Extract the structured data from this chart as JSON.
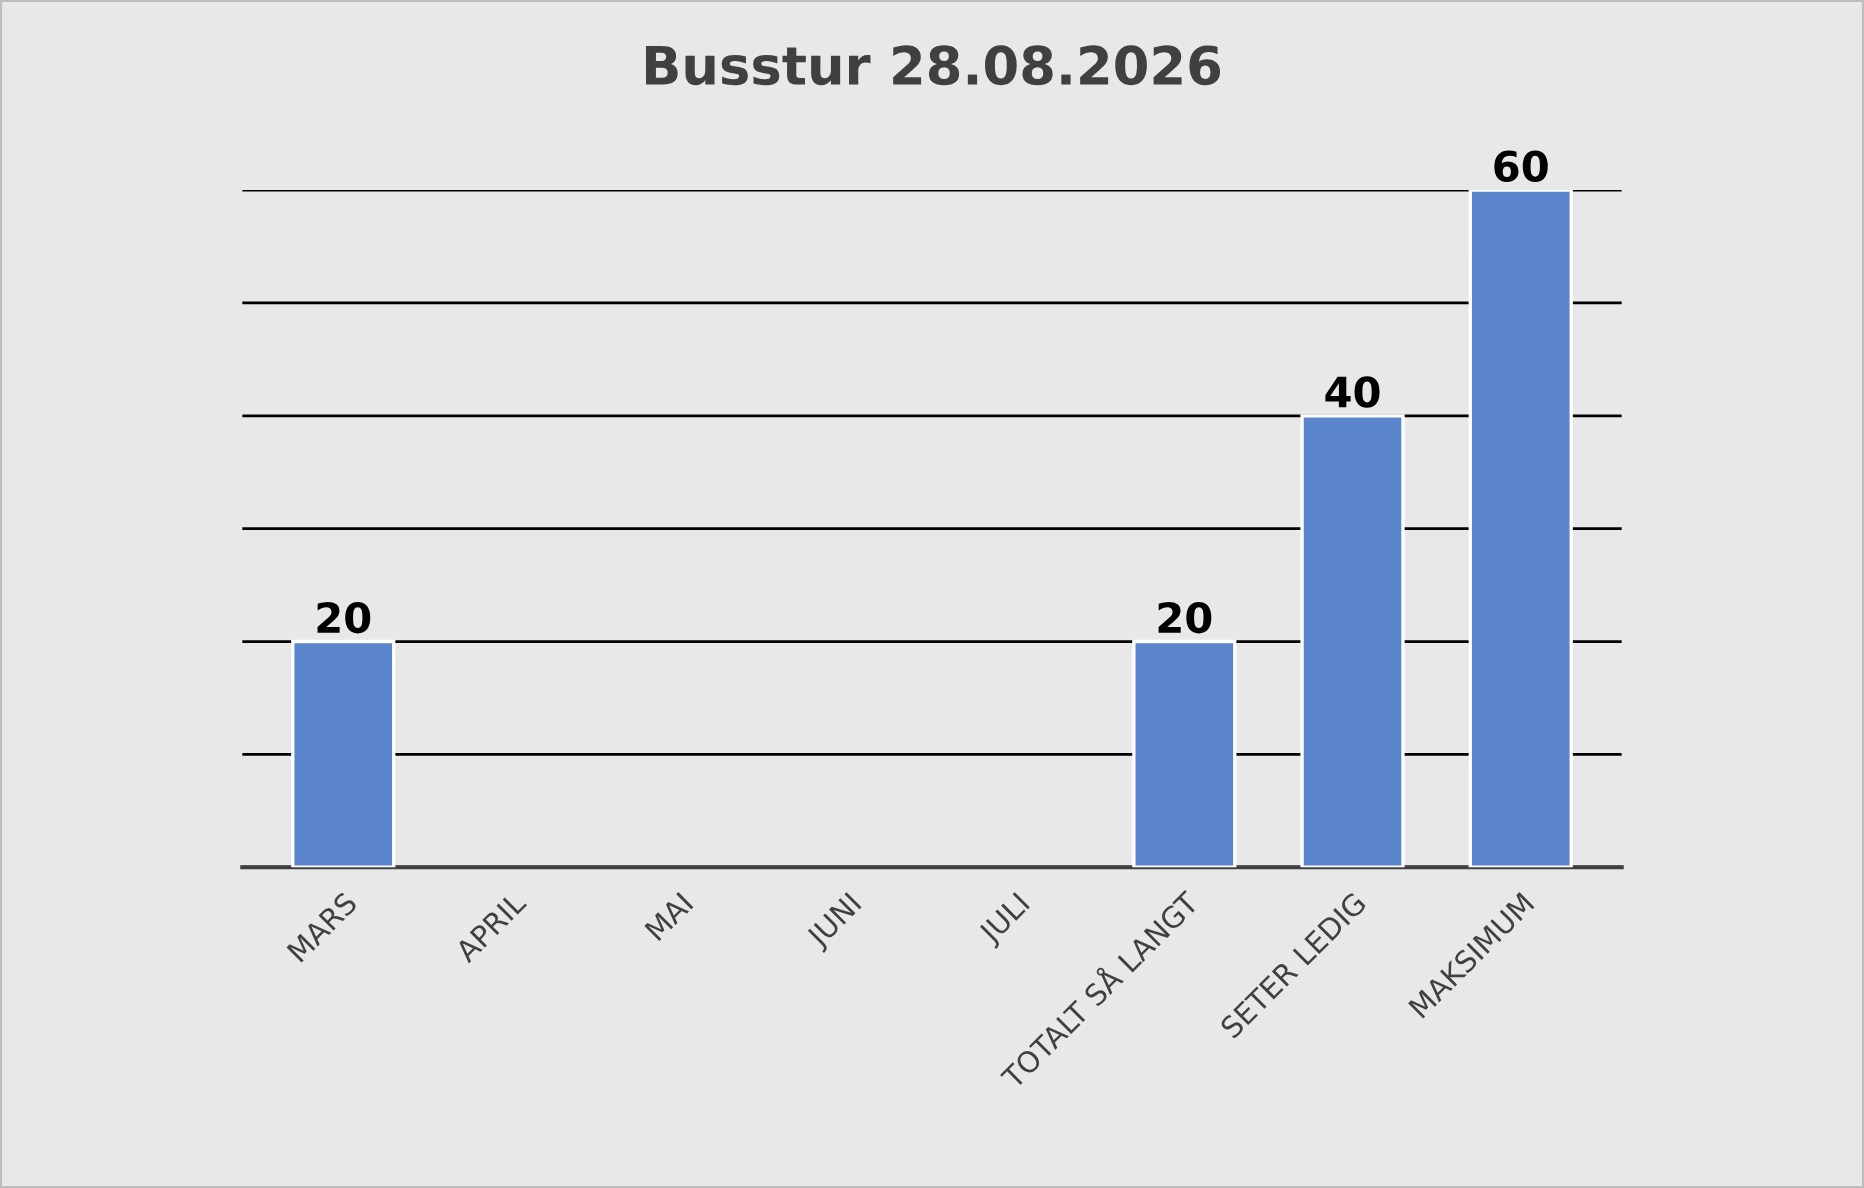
{
  "chart_data": {
    "type": "bar",
    "title": "Busstur 28.08.2026",
    "categories": [
      "MARS",
      "APRIL",
      "MAI",
      "JUNI",
      "JULI",
      "TOTALT SÅ LANGT",
      "SETER LEDIG",
      "MAKSIMUM"
    ],
    "values": [
      20,
      null,
      null,
      null,
      null,
      20,
      40,
      60
    ],
    "color": "#5a84cc",
    "ylim": [
      0,
      60
    ],
    "yticks": [
      {
        "value": 0,
        "label": null
      },
      {
        "value": 10,
        "label": null
      },
      {
        "value": 20,
        "label": null
      },
      {
        "value": 30,
        "label": null
      },
      {
        "value": 40,
        "label": null
      },
      {
        "value": 50,
        "label": null
      },
      {
        "value": 60,
        "label": null
      }
    ],
    "tick_labels": "x",
    "grid": "y",
    "data_labels": true
  }
}
